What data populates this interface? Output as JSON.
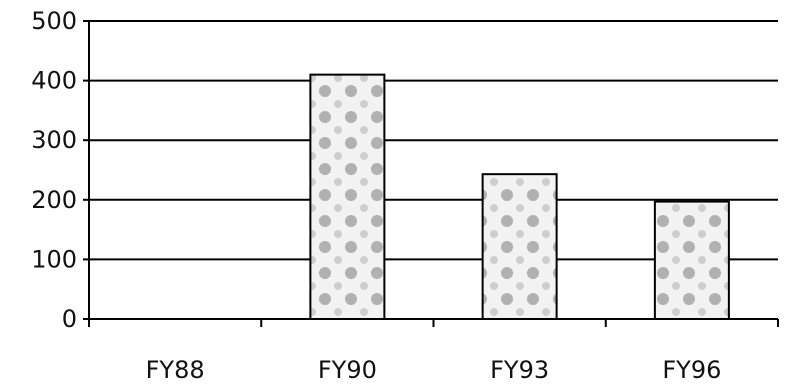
{
  "chart_data": {
    "type": "bar",
    "title": "",
    "xlabel": "",
    "ylabel": "",
    "categories": [
      "FY88",
      "FY90",
      "FY93",
      "FY96"
    ],
    "values": [
      0,
      410,
      243,
      197
    ],
    "ylim": [
      0,
      500
    ],
    "yticks": [
      "0",
      "100",
      "200",
      "300",
      "400",
      "500"
    ],
    "grid": true,
    "legend": "none"
  },
  "colors": {
    "bar_fill_base": "#f2f2f2",
    "bar_pattern": "#9a9a9a",
    "grid": "#000000",
    "text": "#111111"
  }
}
